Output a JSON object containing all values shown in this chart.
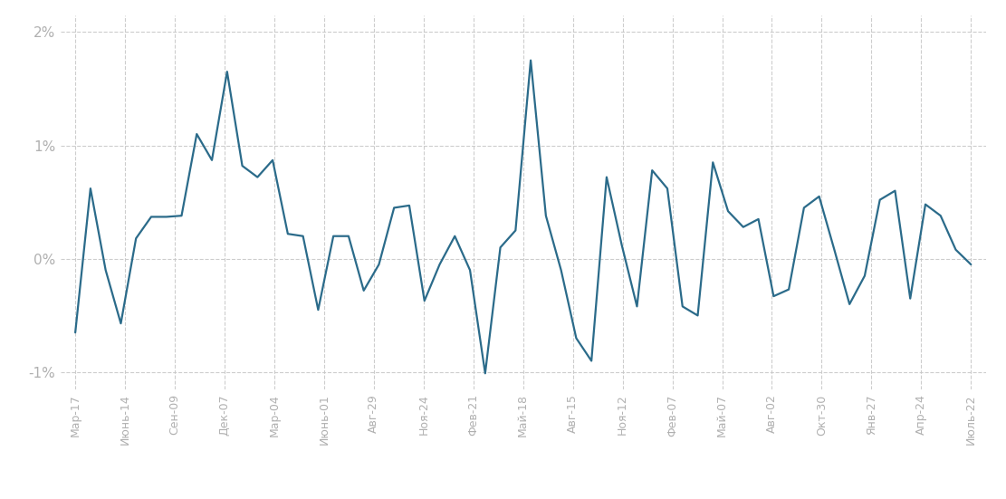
{
  "x_labels": [
    "Мар-17",
    "Июнь-14",
    "Сен-09",
    "Дек-07",
    "Мар-04",
    "Июнь-01",
    "Авг-29",
    "Ноя-24",
    "Фев-21",
    "Май-18",
    "Авг-15",
    "Ноя-12",
    "Фев-07",
    "Май-07",
    "Авг-02",
    "Окт-30",
    "Янв-27",
    "Апр-24",
    "Июль-22"
  ],
  "y_values": [
    -0.65,
    0.62,
    -0.1,
    -0.57,
    0.18,
    0.37,
    0.37,
    0.38,
    1.1,
    0.87,
    1.65,
    0.82,
    0.72,
    0.87,
    0.22,
    0.2,
    -0.45,
    0.2,
    0.2,
    -0.28,
    -0.05,
    0.45,
    0.47,
    -0.37,
    -0.05,
    0.2,
    -0.1,
    -1.01,
    0.1,
    0.25,
    1.75,
    0.38,
    -0.1,
    -0.7,
    -0.9,
    0.72,
    0.12,
    -0.42,
    0.78,
    0.62,
    -0.42,
    -0.5,
    0.85,
    0.42,
    0.28,
    0.35,
    -0.33,
    -0.27,
    0.45,
    0.55,
    0.08,
    -0.4,
    -0.15,
    0.52,
    0.6,
    -0.35,
    0.48,
    0.38,
    0.08,
    -0.05
  ],
  "line_color": "#2b6b8a",
  "line_width": 1.6,
  "background_color": "#ffffff",
  "grid_color": "#c8c8c8",
  "tick_color": "#b0b0b0",
  "ylim_min": -1.15,
  "ylim_max": 2.15,
  "yticks": [
    -1,
    0,
    1,
    2
  ],
  "ytick_labels": [
    "-1%",
    "0%",
    "1%",
    "2%"
  ]
}
